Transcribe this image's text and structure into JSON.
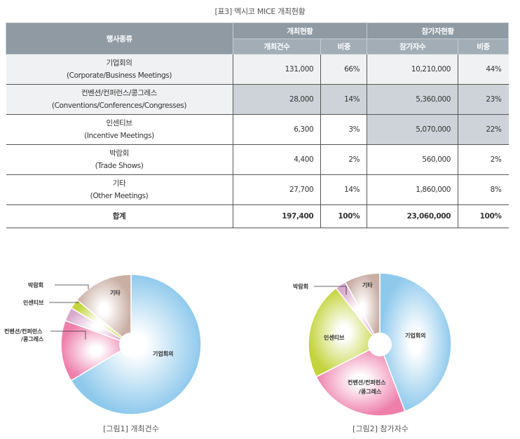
{
  "caption": "[표3] 멕시코 MICE 개최현황",
  "table": {
    "header_type": "행사종류",
    "header_events": "개최현황",
    "header_participants": "참가자현황",
    "sub_events_count": "개최건수",
    "sub_events_share": "비중",
    "sub_participants_count": "참가자수",
    "sub_participants_share": "비중",
    "rows": [
      {
        "name": "기업회의",
        "name_en": "(Corporate/Business Meetings)",
        "events": "131,000",
        "events_share": "66%",
        "participants": "10,210,000",
        "participants_share": "44%"
      },
      {
        "name": "컨벤션/컨퍼런스/콩그레스",
        "name_en": "(Conventions/Conferences/Congresses)",
        "events": "28,000",
        "events_share": "14%",
        "participants": "5,360,000",
        "participants_share": "23%"
      },
      {
        "name": "인센티브",
        "name_en": "(Incentive Meetings)",
        "events": "6,300",
        "events_share": "3%",
        "participants": "5,070,000",
        "participants_share": "22%"
      },
      {
        "name": "박람회",
        "name_en": "(Trade Shows)",
        "events": "4,400",
        "events_share": "2%",
        "participants": "560,000",
        "participants_share": "2%"
      },
      {
        "name": "기타",
        "name_en": "(Other Meetings)",
        "events": "27,700",
        "events_share": "14%",
        "participants": "1,860,000",
        "participants_share": "8%"
      }
    ],
    "total": {
      "name": "합계",
      "events": "197,400",
      "events_share": "100%",
      "participants": "23,060,000",
      "participants_share": "100%"
    }
  },
  "chart_data": [
    {
      "type": "pie",
      "title": "[그림1] 개최건수",
      "categories": [
        "기업회의",
        "컨벤션/컨퍼런스/콩그레스",
        "인센티브",
        "박람회",
        "기타"
      ],
      "values": [
        131000,
        28000,
        6300,
        4400,
        27700
      ],
      "colors": [
        "#8ec9ec",
        "#ee7fab",
        "#d9a8cc",
        "#c3d43c",
        "#c9aea4"
      ]
    },
    {
      "type": "pie",
      "title": "[그림2] 참가자수",
      "categories": [
        "기업회의",
        "컨벤션/컨퍼런스/콩그레스",
        "인센티브",
        "박람회",
        "기타"
      ],
      "values": [
        10210000,
        5360000,
        5070000,
        560000,
        1860000
      ],
      "colors": [
        "#8ec9ec",
        "#ee7fab",
        "#c3d43c",
        "#d9a8cc",
        "#c9aea4"
      ]
    }
  ],
  "chart_labels": {
    "chart1": {
      "label0": "기업회의",
      "label1a": "컨벤션/컨퍼런스",
      "label1b": "/콩그레스",
      "label2": "인센티브",
      "label3": "박람회",
      "label4": "기타"
    },
    "chart2": {
      "label0": "기업회의",
      "label1a": "컨벤션/컨퍼런스",
      "label1b": "/콩그레스",
      "label2": "인센티브",
      "label3": "박람회",
      "label4": "기타"
    }
  }
}
